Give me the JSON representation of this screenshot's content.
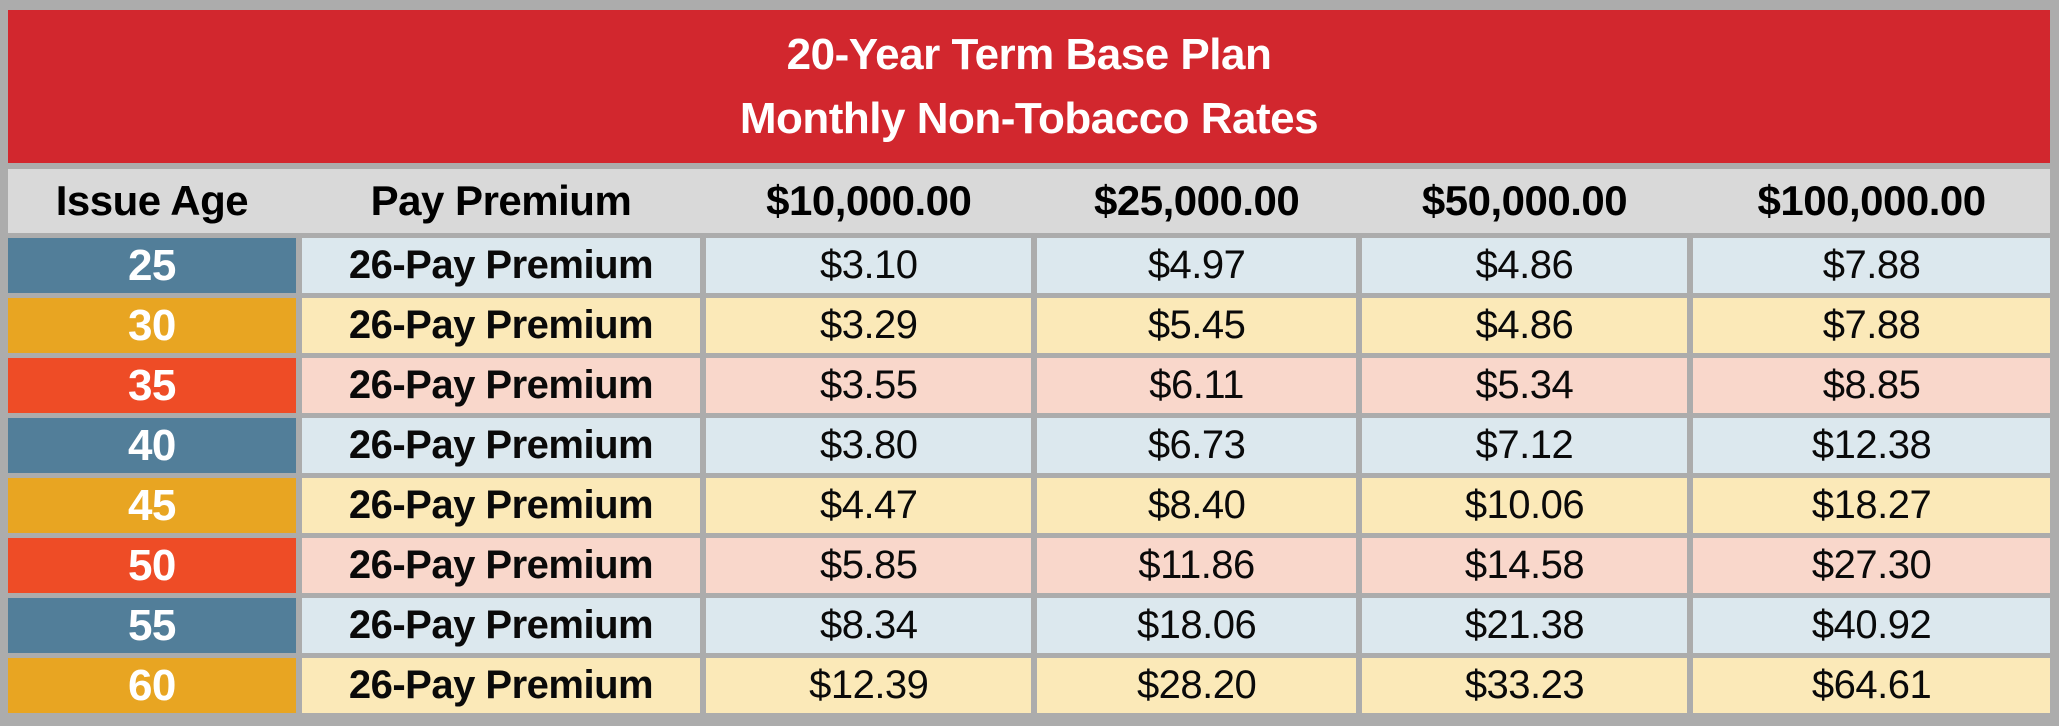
{
  "title": {
    "line1": "20-Year Term Base Plan",
    "line2": "Monthly Non-Tobacco Rates"
  },
  "header": {
    "columns": [
      "Issue Age",
      "Pay Premium",
      "$10,000.00",
      "$25,000.00",
      "$50,000.00",
      "$100,000.00"
    ]
  },
  "rows": [
    {
      "age": "25",
      "premium_label": "26-Pay Premium",
      "values": [
        "$3.10",
        "$4.97",
        "$4.86",
        "$7.88"
      ],
      "theme": "blue"
    },
    {
      "age": "30",
      "premium_label": "26-Pay Premium",
      "values": [
        "$3.29",
        "$5.45",
        "$4.86",
        "$7.88"
      ],
      "theme": "gold"
    },
    {
      "age": "35",
      "premium_label": "26-Pay Premium",
      "values": [
        "$3.55",
        "$6.11",
        "$5.34",
        "$8.85"
      ],
      "theme": "orange"
    },
    {
      "age": "40",
      "premium_label": "26-Pay Premium",
      "values": [
        "$3.80",
        "$6.73",
        "$7.12",
        "$12.38"
      ],
      "theme": "blue"
    },
    {
      "age": "45",
      "premium_label": "26-Pay Premium",
      "values": [
        "$4.47",
        "$8.40",
        "$10.06",
        "$18.27"
      ],
      "theme": "gold"
    },
    {
      "age": "50",
      "premium_label": "26-Pay Premium",
      "values": [
        "$5.85",
        "$11.86",
        "$14.58",
        "$27.30"
      ],
      "theme": "orange"
    },
    {
      "age": "55",
      "premium_label": "26-Pay Premium",
      "values": [
        "$8.34",
        "$18.06",
        "$21.38",
        "$40.92"
      ],
      "theme": "blue"
    },
    {
      "age": "60",
      "premium_label": "26-Pay Premium",
      "values": [
        "$12.39",
        "$28.20",
        "$33.23",
        "$64.61"
      ],
      "theme": "gold"
    }
  ],
  "colors": {
    "banner_red": "#d2272e",
    "header_gray": "#d9d9d9",
    "border_gray": "#acacac",
    "age_blue": "#527e99",
    "age_gold": "#e8a522",
    "age_orange": "#ee4c26",
    "row_tint_blue": "#dce8ee",
    "row_tint_gold": "#fbe9b8",
    "row_tint_orange": "#f9d7cb",
    "title_text": "#ffffff",
    "body_text": "#0a0a0a"
  },
  "chart_data": {
    "type": "table",
    "title": "20-Year Term Base Plan — Monthly Non-Tobacco Rates",
    "columns": [
      "Issue Age",
      "Pay Premium",
      "$10,000.00",
      "$25,000.00",
      "$50,000.00",
      "$100,000.00"
    ],
    "rows": [
      [
        "25",
        "26-Pay Premium",
        3.1,
        4.97,
        4.86,
        7.88
      ],
      [
        "30",
        "26-Pay Premium",
        3.29,
        5.45,
        4.86,
        7.88
      ],
      [
        "35",
        "26-Pay Premium",
        3.55,
        6.11,
        5.34,
        8.85
      ],
      [
        "40",
        "26-Pay Premium",
        3.8,
        6.73,
        7.12,
        12.38
      ],
      [
        "45",
        "26-Pay Premium",
        4.47,
        8.4,
        10.06,
        18.27
      ],
      [
        "50",
        "26-Pay Premium",
        5.85,
        11.86,
        14.58,
        27.3
      ],
      [
        "55",
        "26-Pay Premium",
        8.34,
        18.06,
        21.38,
        40.92
      ],
      [
        "60",
        "26-Pay Premium",
        12.39,
        28.2,
        33.23,
        64.61
      ]
    ],
    "units": "USD per month",
    "notes": "Row accent colors cycle blue/gold/orange by issue age"
  }
}
